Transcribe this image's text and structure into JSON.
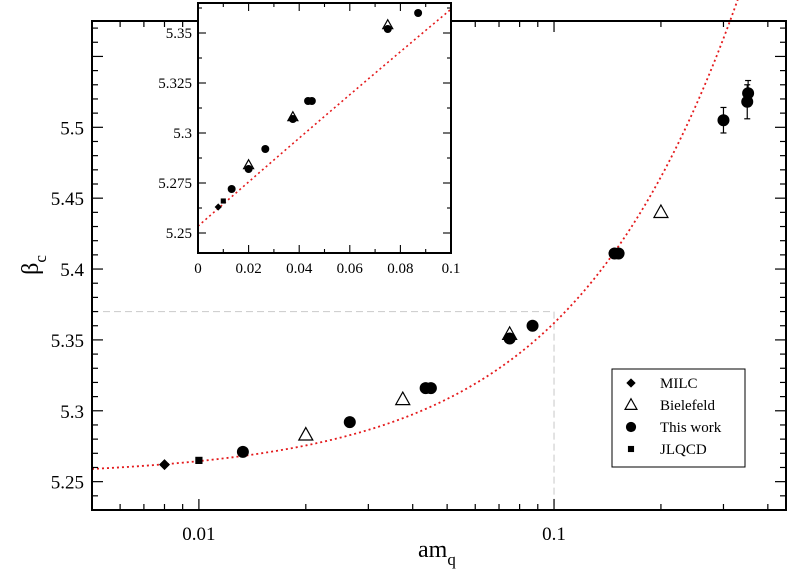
{
  "chart_data": {
    "type": "scatter",
    "xscale": "log",
    "xlim": [
      0.005,
      0.45
    ],
    "ylim": [
      5.23,
      5.575
    ],
    "xlabel": {
      "main": "am",
      "sub": "q"
    },
    "ylabel": {
      "main": "β",
      "sub": "c"
    },
    "xticks": [
      {
        "value": 0.01,
        "label": "0.01"
      },
      {
        "value": 0.1,
        "label": "0.1"
      }
    ],
    "yticks": [
      {
        "value": 5.25,
        "label": "5.25"
      },
      {
        "value": 5.3,
        "label": "5.3"
      },
      {
        "value": 5.35,
        "label": "5.35"
      },
      {
        "value": 5.4,
        "label": "5.4"
      },
      {
        "value": 5.45,
        "label": "5.45"
      },
      {
        "value": 5.5,
        "label": "5.5"
      }
    ],
    "series": [
      {
        "name": "MILC",
        "marker": "diamond",
        "points": [
          {
            "x": 0.008,
            "y": 5.262
          }
        ]
      },
      {
        "name": "Bielefeld",
        "marker": "triangle-open",
        "points": [
          {
            "x": 0.02,
            "y": 5.283
          },
          {
            "x": 0.0375,
            "y": 5.308
          },
          {
            "x": 0.075,
            "y": 5.354
          },
          {
            "x": 0.2,
            "y": 5.44
          }
        ]
      },
      {
        "name": "This work",
        "marker": "circle",
        "points": [
          {
            "x": 0.0133,
            "y": 5.271
          },
          {
            "x": 0.0266,
            "y": 5.292
          },
          {
            "x": 0.0435,
            "y": 5.316
          },
          {
            "x": 0.045,
            "y": 5.316
          },
          {
            "x": 0.075,
            "y": 5.351
          },
          {
            "x": 0.087,
            "y": 5.36
          },
          {
            "x": 0.148,
            "y": 5.411
          },
          {
            "x": 0.152,
            "y": 5.411
          },
          {
            "x": 0.3,
            "y": 5.505,
            "err": 0.009
          },
          {
            "x": 0.35,
            "y": 5.518,
            "err": 0.012
          },
          {
            "x": 0.352,
            "y": 5.524,
            "err": 0.009
          }
        ]
      },
      {
        "name": "JLQCD",
        "marker": "square",
        "points": [
          {
            "x": 0.01,
            "y": 5.265
          }
        ]
      }
    ],
    "fit_curve": {
      "style": "dotted",
      "color": "#e41a1c",
      "intercept": 5.2534,
      "slope": 1.112,
      "quadratic": -0.27
    },
    "reference_lines": {
      "x": 0.1,
      "y": 5.37,
      "color": "#d0d0d0"
    },
    "legend": {
      "position": "bottom-right",
      "entries": [
        "MILC",
        "Bielefeld",
        "This work",
        "JLQCD"
      ]
    },
    "inset": {
      "xscale": "linear",
      "xlim": [
        0,
        0.1
      ],
      "ylim": [
        5.24,
        5.365
      ],
      "xticks": [
        {
          "value": 0,
          "label": "0"
        },
        {
          "value": 0.02,
          "label": "0.02"
        },
        {
          "value": 0.04,
          "label": "0.04"
        },
        {
          "value": 0.06,
          "label": "0.06"
        },
        {
          "value": 0.08,
          "label": "0.08"
        },
        {
          "value": 0.1,
          "label": "0.1"
        }
      ],
      "yticks": [
        {
          "value": 5.25,
          "label": "5.25"
        },
        {
          "value": 5.275,
          "label": "5.275"
        },
        {
          "value": 5.3,
          "label": "5.3"
        },
        {
          "value": 5.325,
          "label": "5.325"
        },
        {
          "value": 5.35,
          "label": "5.35"
        }
      ],
      "points": [
        {
          "series": "MILC",
          "x": 0.008,
          "y": 5.263
        },
        {
          "series": "JLQCD",
          "x": 0.01,
          "y": 5.266
        },
        {
          "series": "This work",
          "x": 0.0133,
          "y": 5.272
        },
        {
          "series": "Bielefeld",
          "x": 0.02,
          "y": 5.284
        },
        {
          "series": "This work",
          "x": 0.02,
          "y": 5.282
        },
        {
          "series": "This work",
          "x": 0.0266,
          "y": 5.292
        },
        {
          "series": "Bielefeld",
          "x": 0.0375,
          "y": 5.308
        },
        {
          "series": "This work",
          "x": 0.0375,
          "y": 5.307
        },
        {
          "series": "This work",
          "x": 0.0435,
          "y": 5.316
        },
        {
          "series": "This work",
          "x": 0.045,
          "y": 5.316
        },
        {
          "series": "Bielefeld",
          "x": 0.075,
          "y": 5.354
        },
        {
          "series": "This work",
          "x": 0.075,
          "y": 5.352
        },
        {
          "series": "This work",
          "x": 0.087,
          "y": 5.36
        }
      ]
    }
  }
}
